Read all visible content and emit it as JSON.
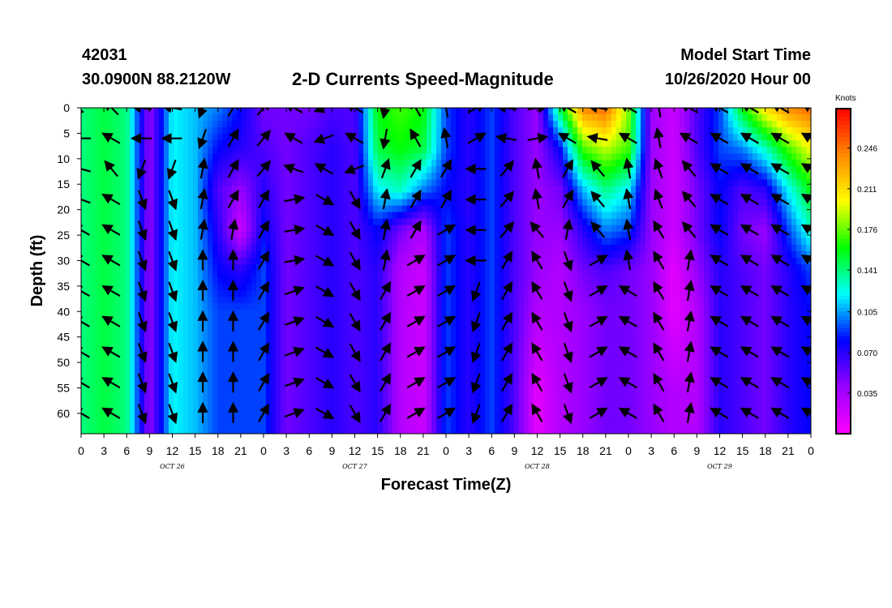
{
  "header": {
    "station_id": "42031",
    "location": "30.0900N 88.2120W",
    "title": "2-D Currents Speed-Magnitude",
    "model_start_label": "Model Start Time",
    "model_start_value": "10/26/2020 Hour 00"
  },
  "chart_data": {
    "type": "heatmap",
    "title": "2-D Currents Speed-Magnitude",
    "xlabel": "Forecast Time(Z)",
    "ylabel": "Depth (ft)",
    "colorbar_label": "Knots",
    "colorbar_ticks": [
      "0.246",
      "0.211",
      "0.176",
      "0.141",
      "0.105",
      "0.070",
      "0.035"
    ],
    "colorbar_range": [
      0.0,
      0.28
    ],
    "colormap": [
      "#ff00ff",
      "#9900ff",
      "#0000ff",
      "#00ffff",
      "#00ff00",
      "#ffff00",
      "#ff8800",
      "#ff0000"
    ],
    "xlim_hours": [
      0,
      96
    ],
    "ylim_ft": [
      0,
      64
    ],
    "x_tick_labels": [
      "0",
      "3",
      "6",
      "9",
      "12",
      "15",
      "18",
      "21",
      "0",
      "3",
      "6",
      "9",
      "12",
      "15",
      "18",
      "21",
      "0",
      "3",
      "6",
      "9",
      "12",
      "15",
      "18",
      "21",
      "0",
      "3",
      "6",
      "9",
      "12",
      "15",
      "18",
      "21",
      "0"
    ],
    "y_ticks": [
      0,
      5,
      10,
      15,
      20,
      25,
      30,
      35,
      40,
      45,
      50,
      55,
      60
    ],
    "day_labels": [
      {
        "text": "OCT 26",
        "hour": 12
      },
      {
        "text": "OCT 27",
        "hour": 36
      },
      {
        "text": "OCT 28",
        "hour": 60
      },
      {
        "text": "OCT 29",
        "hour": 84
      }
    ],
    "time_hours": [
      0,
      3,
      6,
      9,
      12,
      15,
      18,
      21,
      24,
      27,
      30,
      33,
      36,
      39,
      42,
      45,
      48,
      51,
      54,
      57,
      60,
      63,
      66,
      69,
      72,
      75,
      78,
      81,
      84,
      87,
      90,
      93,
      96
    ],
    "depth_ft": [
      0,
      8,
      16,
      24,
      32,
      40,
      48,
      56,
      64
    ],
    "speed_knots_by_depth": [
      [
        0.14,
        0.15,
        0.14,
        0.04,
        0.12,
        0.11,
        0.1,
        0.08,
        0.05,
        0.05,
        0.05,
        0.06,
        0.06,
        0.16,
        0.17,
        0.16,
        0.09,
        0.07,
        0.09,
        0.06,
        0.04,
        0.15,
        0.24,
        0.25,
        0.18,
        0.04,
        0.02,
        0.06,
        0.09,
        0.16,
        0.21,
        0.24,
        0.25
      ],
      [
        0.14,
        0.15,
        0.14,
        0.04,
        0.12,
        0.11,
        0.08,
        0.07,
        0.06,
        0.05,
        0.06,
        0.07,
        0.06,
        0.15,
        0.16,
        0.15,
        0.09,
        0.07,
        0.09,
        0.06,
        0.04,
        0.08,
        0.17,
        0.19,
        0.17,
        0.04,
        0.02,
        0.06,
        0.09,
        0.1,
        0.13,
        0.17,
        0.2
      ],
      [
        0.14,
        0.15,
        0.14,
        0.04,
        0.12,
        0.11,
        0.06,
        0.04,
        0.07,
        0.05,
        0.06,
        0.07,
        0.06,
        0.12,
        0.13,
        0.1,
        0.08,
        0.07,
        0.09,
        0.06,
        0.04,
        0.05,
        0.11,
        0.14,
        0.12,
        0.04,
        0.02,
        0.05,
        0.08,
        0.06,
        0.07,
        0.12,
        0.16
      ],
      [
        0.14,
        0.15,
        0.14,
        0.04,
        0.12,
        0.11,
        0.07,
        0.02,
        0.08,
        0.05,
        0.06,
        0.07,
        0.06,
        0.08,
        0.05,
        0.03,
        0.09,
        0.07,
        0.09,
        0.06,
        0.04,
        0.04,
        0.07,
        0.1,
        0.09,
        0.04,
        0.02,
        0.05,
        0.08,
        0.05,
        0.04,
        0.09,
        0.13
      ],
      [
        0.14,
        0.15,
        0.14,
        0.04,
        0.12,
        0.11,
        0.08,
        0.07,
        0.09,
        0.05,
        0.06,
        0.07,
        0.06,
        0.07,
        0.03,
        0.02,
        0.09,
        0.07,
        0.09,
        0.06,
        0.04,
        0.03,
        0.05,
        0.06,
        0.05,
        0.04,
        0.01,
        0.04,
        0.07,
        0.06,
        0.05,
        0.07,
        0.09
      ],
      [
        0.14,
        0.15,
        0.14,
        0.04,
        0.12,
        0.11,
        0.09,
        0.09,
        0.09,
        0.05,
        0.06,
        0.07,
        0.06,
        0.07,
        0.03,
        0.02,
        0.09,
        0.07,
        0.09,
        0.06,
        0.03,
        0.03,
        0.04,
        0.05,
        0.05,
        0.04,
        0.01,
        0.03,
        0.07,
        0.06,
        0.05,
        0.07,
        0.08
      ],
      [
        0.14,
        0.15,
        0.14,
        0.04,
        0.12,
        0.11,
        0.09,
        0.09,
        0.09,
        0.05,
        0.06,
        0.07,
        0.06,
        0.07,
        0.03,
        0.02,
        0.09,
        0.07,
        0.09,
        0.06,
        0.02,
        0.03,
        0.04,
        0.05,
        0.05,
        0.04,
        0.02,
        0.03,
        0.07,
        0.06,
        0.05,
        0.07,
        0.08
      ],
      [
        0.14,
        0.15,
        0.14,
        0.04,
        0.12,
        0.11,
        0.09,
        0.09,
        0.09,
        0.05,
        0.06,
        0.07,
        0.06,
        0.07,
        0.03,
        0.02,
        0.09,
        0.07,
        0.09,
        0.06,
        0.01,
        0.03,
        0.04,
        0.05,
        0.05,
        0.04,
        0.03,
        0.03,
        0.07,
        0.06,
        0.05,
        0.07,
        0.08
      ],
      [
        0.14,
        0.15,
        0.14,
        0.04,
        0.12,
        0.11,
        0.09,
        0.09,
        0.09,
        0.05,
        0.06,
        0.07,
        0.06,
        0.07,
        0.03,
        0.02,
        0.09,
        0.07,
        0.09,
        0.06,
        0.01,
        0.03,
        0.04,
        0.05,
        0.05,
        0.04,
        0.03,
        0.03,
        0.07,
        0.06,
        0.05,
        0.07,
        0.08
      ]
    ],
    "vector_time_hours": [
      0,
      4,
      8,
      12,
      16,
      20,
      24,
      28,
      32,
      36,
      40,
      44,
      48,
      52,
      56,
      60,
      64,
      68,
      72,
      76,
      80,
      84,
      88,
      92,
      96
    ],
    "vector_depth_ft": [
      0,
      6,
      12,
      18,
      24,
      30,
      36,
      42,
      48,
      54,
      60
    ],
    "vector_direction_deg_to": [
      [
        225,
        315,
        280,
        280,
        200,
        30,
        40,
        300,
        250,
        300,
        190,
        330,
        350,
        60,
        280,
        80,
        300,
        280,
        300,
        350,
        300,
        300,
        300,
        300,
        300
      ],
      [
        270,
        300,
        270,
        270,
        200,
        30,
        40,
        300,
        250,
        300,
        190,
        330,
        350,
        60,
        280,
        80,
        300,
        280,
        300,
        350,
        300,
        300,
        300,
        300,
        300
      ],
      [
        285,
        320,
        200,
        200,
        10,
        30,
        40,
        290,
        300,
        250,
        20,
        30,
        30,
        270,
        40,
        350,
        30,
        320,
        350,
        340,
        320,
        300,
        300,
        300,
        300
      ],
      [
        290,
        300,
        160,
        160,
        10,
        30,
        30,
        80,
        120,
        150,
        10,
        30,
        30,
        270,
        40,
        350,
        30,
        320,
        350,
        340,
        320,
        300,
        300,
        300,
        300
      ],
      [
        300,
        300,
        160,
        160,
        10,
        10,
        30,
        80,
        120,
        150,
        10,
        30,
        60,
        270,
        40,
        320,
        10,
        320,
        350,
        330,
        320,
        300,
        300,
        300,
        300
      ],
      [
        300,
        300,
        160,
        160,
        0,
        0,
        30,
        80,
        120,
        150,
        10,
        60,
        60,
        270,
        30,
        330,
        160,
        60,
        350,
        330,
        10,
        300,
        300,
        300,
        300
      ],
      [
        300,
        300,
        160,
        160,
        0,
        0,
        30,
        70,
        120,
        150,
        30,
        60,
        60,
        200,
        30,
        330,
        160,
        60,
        300,
        330,
        10,
        300,
        300,
        300,
        300
      ],
      [
        300,
        300,
        160,
        160,
        0,
        0,
        30,
        70,
        120,
        150,
        30,
        60,
        60,
        200,
        30,
        330,
        160,
        60,
        300,
        330,
        10,
        300,
        300,
        300,
        300
      ],
      [
        300,
        300,
        160,
        160,
        0,
        0,
        30,
        70,
        120,
        150,
        30,
        60,
        60,
        200,
        30,
        330,
        160,
        60,
        300,
        330,
        10,
        300,
        300,
        300,
        300
      ],
      [
        300,
        300,
        160,
        160,
        0,
        0,
        30,
        70,
        120,
        150,
        30,
        60,
        60,
        200,
        30,
        330,
        160,
        60,
        300,
        330,
        10,
        300,
        300,
        300,
        300
      ],
      [
        300,
        300,
        160,
        160,
        0,
        0,
        30,
        70,
        120,
        150,
        30,
        60,
        60,
        200,
        30,
        330,
        160,
        60,
        300,
        330,
        10,
        300,
        300,
        300,
        300
      ]
    ]
  }
}
